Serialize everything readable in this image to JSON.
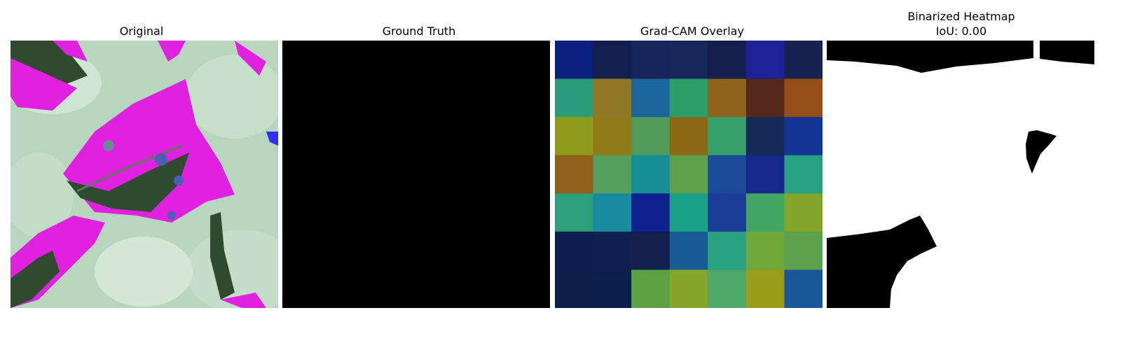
{
  "panels": {
    "original": {
      "title": "Original"
    },
    "ground_truth": {
      "title": "Ground Truth"
    },
    "gradcam": {
      "title": "Grad-CAM Overlay",
      "grid": [
        [
          "#0c2080",
          "#13204f",
          "#15245a",
          "#16285a",
          "#141f4e",
          "#1b2297",
          "#16224f"
        ],
        [
          "#2a9c7a",
          "#917724",
          "#1a659b",
          "#2b9e6a",
          "#8e6218",
          "#53281a",
          "#974f18"
        ],
        [
          "#8d9a1b",
          "#927c1a",
          "#4f9c58",
          "#8d6915",
          "#36a06a",
          "#162a58",
          "#143595"
        ],
        [
          "#91601b",
          "#52a05c",
          "#158e95",
          "#5ea04c",
          "#1a4a98",
          "#18278a",
          "#25a081"
        ],
        [
          "#2a9f7a",
          "#1a8a9f",
          "#10218d",
          "#1ca08a",
          "#1a3c97",
          "#41a564",
          "#81a42a"
        ],
        [
          "#0c1f4f",
          "#0f1f51",
          "#131f4d",
          "#175c95",
          "#2aa180",
          "#6fa93a",
          "#5ca14c"
        ],
        [
          "#0b1f4a",
          "#0b1f4d",
          "#5aa143",
          "#84a42a",
          "#4ca96a",
          "#999d1a",
          "#185899"
        ]
      ]
    },
    "binarized": {
      "title_line1": "Binarized Heatmap",
      "title_line2": "IoU: 0.00"
    }
  }
}
